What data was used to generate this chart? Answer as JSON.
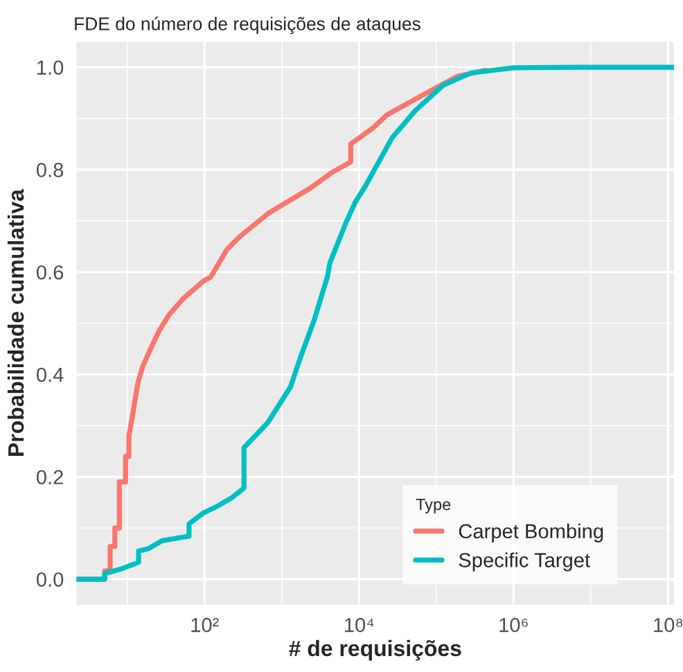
{
  "chart_data": {
    "type": "line",
    "title": "FDE do número de requisições de ataques",
    "xlabel": "# de requisições",
    "ylabel": "Probabilidade cumulativa",
    "legend_title": "Type",
    "legend": "bottom right",
    "grid": true,
    "log": "x",
    "xlim": [
      2.2,
      120000000
    ],
    "xticks": [
      {
        "value": 100,
        "label": "10²"
      },
      {
        "value": 10000,
        "label": "10⁴"
      },
      {
        "value": 1000000,
        "label": "10⁶"
      },
      {
        "value": 100000000,
        "label": "10⁸"
      }
    ],
    "ylim": [
      -0.05,
      1.05
    ],
    "yticks": [
      {
        "value": 0,
        "label": "0.0"
      },
      {
        "value": 0.2,
        "label": "0.2"
      },
      {
        "value": 0.4,
        "label": "0.4"
      },
      {
        "value": 0.6,
        "label": "0.6"
      },
      {
        "value": 0.8,
        "label": "0.8"
      },
      {
        "value": 1,
        "label": "1.0"
      }
    ],
    "series": [
      {
        "name": "Carpet Bombing",
        "color": "#f8766d",
        "x": [
          2.2,
          5.1,
          5.1,
          6.0,
          6.0,
          6.9,
          6.9,
          7.9,
          7.9,
          9.5,
          9.5,
          10.5,
          10.5,
          11.7,
          12.6,
          13.8,
          15.8,
          20,
          26,
          35,
          52,
          98,
          120,
          195,
          290,
          660,
          1150,
          2300,
          4500,
          7800,
          7800,
          15000,
          23000,
          54000,
          100000,
          186000,
          430000
        ],
        "values": [
          0,
          0,
          0.016,
          0.016,
          0.064,
          0.064,
          0.1,
          0.1,
          0.19,
          0.19,
          0.24,
          0.24,
          0.28,
          0.32,
          0.35,
          0.385,
          0.415,
          0.45,
          0.486,
          0.517,
          0.547,
          0.583,
          0.59,
          0.644,
          0.67,
          0.714,
          0.736,
          0.763,
          0.795,
          0.815,
          0.85,
          0.881,
          0.907,
          0.938,
          0.96,
          0.982,
          0.994
        ]
      },
      {
        "name": "Specific Target",
        "color": "#00bfc4",
        "x": [
          2.2,
          5.1,
          5.1,
          8.3,
          14,
          14,
          19,
          28,
          43,
          63,
          63,
          98,
          148,
          224,
          324,
          324,
          660,
          1300,
          1740,
          2600,
          3900,
          4200,
          6800,
          8900,
          12000,
          27000,
          54000,
          123000,
          282000,
          1000000,
          6800000,
          120000000
        ],
        "values": [
          0,
          0,
          0.011,
          0.02,
          0.033,
          0.055,
          0.06,
          0.075,
          0.08,
          0.084,
          0.108,
          0.13,
          0.143,
          0.159,
          0.178,
          0.257,
          0.306,
          0.376,
          0.433,
          0.504,
          0.591,
          0.618,
          0.697,
          0.736,
          0.767,
          0.863,
          0.916,
          0.965,
          0.989,
          0.999,
          1.0,
          1.0
        ]
      }
    ]
  }
}
